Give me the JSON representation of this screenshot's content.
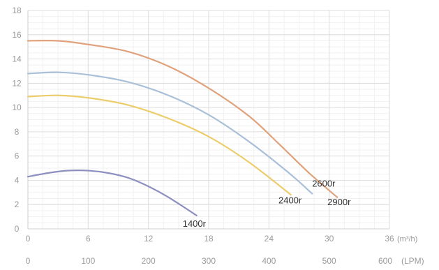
{
  "chart_data": {
    "type": "line",
    "y_axis": {
      "min": 0,
      "max": 18,
      "ticks": [
        "0",
        "2",
        "4",
        "6",
        "8",
        "10",
        "12",
        "14",
        "16",
        "18"
      ]
    },
    "x_axis_primary": {
      "min": 0,
      "max": 36,
      "ticks": [
        "0",
        "6",
        "12",
        "18",
        "24",
        "30",
        "36"
      ],
      "unit": "(m³/h)"
    },
    "x_axis_secondary": {
      "ticks": [
        "0",
        "100",
        "200",
        "300",
        "400",
        "500",
        "600"
      ],
      "unit": "(LPM)"
    },
    "grid": true,
    "series": [
      {
        "name": "2900r",
        "color": "#e0a27c",
        "x": [
          0,
          3,
          6,
          10,
          14,
          18,
          22,
          25,
          28,
          30.8
        ],
        "y": [
          15.5,
          15.5,
          15.2,
          14.6,
          13.4,
          11.6,
          9.3,
          7.0,
          4.6,
          2.6
        ]
      },
      {
        "name": "2600r",
        "color": "#a9c0d8",
        "x": [
          0,
          3,
          6,
          10,
          14,
          18,
          22,
          26,
          28.3
        ],
        "y": [
          12.8,
          12.9,
          12.7,
          12.1,
          11.0,
          9.4,
          7.2,
          4.6,
          2.9
        ]
      },
      {
        "name": "2400r",
        "color": "#eccd6c",
        "x": [
          0,
          3,
          6,
          10,
          14,
          18,
          22,
          26.2
        ],
        "y": [
          10.9,
          11.0,
          10.8,
          10.2,
          9.1,
          7.6,
          5.5,
          2.8
        ]
      },
      {
        "name": "1400r",
        "color": "#8d8fc0",
        "x": [
          0,
          2,
          4,
          6,
          8,
          10,
          12,
          14,
          16.8
        ],
        "y": [
          4.3,
          4.6,
          4.8,
          4.8,
          4.6,
          4.2,
          3.5,
          2.6,
          1.1
        ]
      }
    ],
    "labels": [
      {
        "text": "2600r",
        "series": "2600r"
      },
      {
        "text": "2400r",
        "series": "2400r"
      },
      {
        "text": "2900r",
        "series": "2900r"
      },
      {
        "text": "1400r",
        "series": "1400r"
      }
    ]
  }
}
